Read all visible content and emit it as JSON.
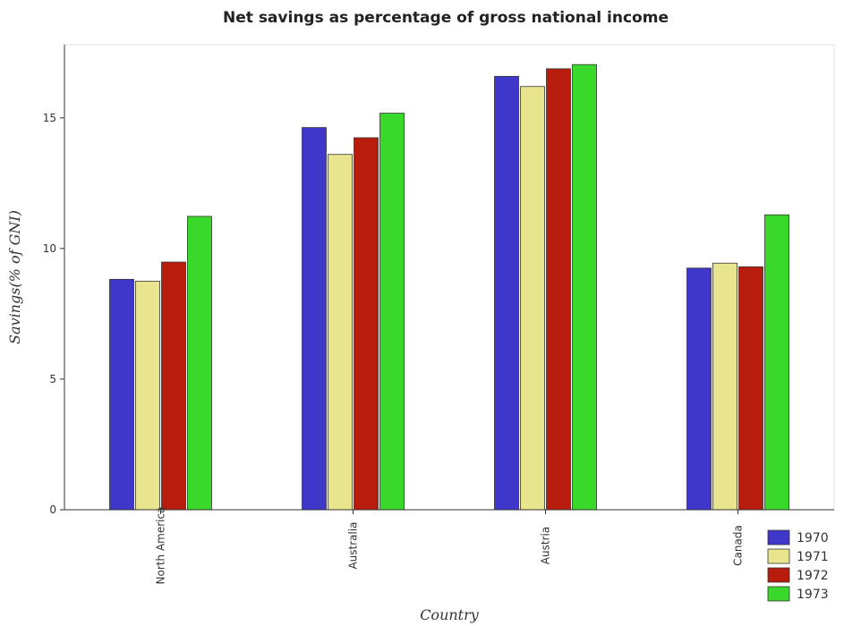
{
  "chart_data": {
    "type": "bar",
    "title": "Net savings as percentage of gross national income",
    "xlabel": "Country",
    "ylabel": "Savings(% of GNI)",
    "categories": [
      "North America",
      "Australia",
      "Austria",
      "Canada"
    ],
    "series": [
      {
        "name": "1970",
        "color": "#3f37c9",
        "values": [
          8.82,
          14.63,
          16.59,
          9.25
        ]
      },
      {
        "name": "1971",
        "color": "#e9e58e",
        "values": [
          8.75,
          13.6,
          16.2,
          9.44
        ]
      },
      {
        "name": "1972",
        "color": "#b81c0c",
        "values": [
          9.48,
          14.24,
          16.88,
          9.3
        ]
      },
      {
        "name": "1973",
        "color": "#3bd82c",
        "values": [
          11.23,
          15.18,
          17.04,
          11.29
        ]
      }
    ],
    "ylim": [
      0,
      17.8
    ],
    "yticks": [
      0,
      5,
      10,
      15
    ],
    "legend_position": "bottom-right",
    "grid": false
  }
}
